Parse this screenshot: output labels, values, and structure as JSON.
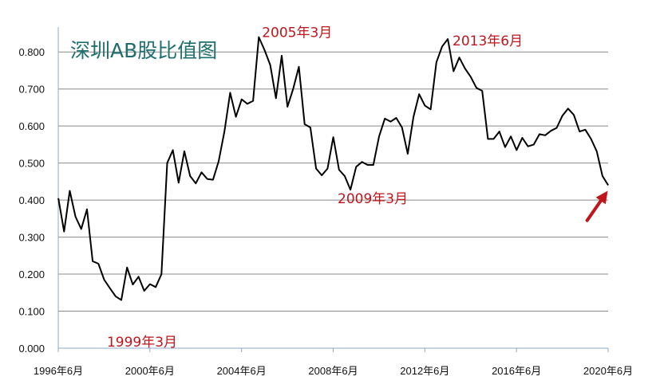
{
  "chart_data": {
    "type": "line",
    "title": "深圳AB股比值图",
    "xlabel": "",
    "ylabel": "",
    "ylim": [
      0,
      0.85
    ],
    "y_ticks": [
      "0.000",
      "0.100",
      "0.200",
      "0.300",
      "0.400",
      "0.500",
      "0.600",
      "0.700",
      "0.800"
    ],
    "x_tick_labels": [
      "1996年6月",
      "2000年6月",
      "2004年6月",
      "2008年6月",
      "2012年6月",
      "2016年6月",
      "2020年6月"
    ],
    "x_tick_years": [
      1996.417,
      2000.417,
      2004.417,
      2008.417,
      2012.417,
      2016.417,
      2020.417
    ],
    "xlim": [
      1996.417,
      2020.417
    ],
    "grid": "horizontal",
    "line_color": "#000000",
    "annotation_color": "#c0151b",
    "annotations": [
      {
        "text": "1999年3月",
        "x": 1999.167,
        "y": 0.03
      },
      {
        "text": "2005年3月",
        "x": 2005.167,
        "y": 0.84
      },
      {
        "text": "2009年3月",
        "x": 2009.167,
        "y": 0.43
      },
      {
        "text": "2013年6月",
        "x": 2013.417,
        "y": 0.835
      }
    ],
    "arrow": {
      "from": [
        2019.5,
        0.345
      ],
      "to": [
        2020.4,
        0.425
      ],
      "color": "#c0151b"
    },
    "series": [
      {
        "x": [
          1996.42,
          1996.67,
          1996.92,
          1997.17,
          1997.42,
          1997.67,
          1997.92,
          1998.17,
          1998.42,
          1998.67,
          1998.92,
          1999.17,
          1999.42,
          1999.67,
          1999.92,
          2000.17,
          2000.42,
          2000.67,
          2000.92,
          2001.17,
          2001.42,
          2001.67,
          2001.92,
          2002.17,
          2002.42,
          2002.67,
          2002.92,
          2003.17,
          2003.42,
          2003.67,
          2003.92,
          2004.17,
          2004.42,
          2004.67,
          2004.92,
          2005.17,
          2005.42,
          2005.67,
          2005.92,
          2006.17,
          2006.42,
          2006.67,
          2006.92,
          2007.17,
          2007.42,
          2007.67,
          2007.92,
          2008.17,
          2008.42,
          2008.67,
          2008.92,
          2009.17,
          2009.42,
          2009.67,
          2009.92,
          2010.17,
          2010.42,
          2010.67,
          2010.92,
          2011.17,
          2011.42,
          2011.67,
          2011.92,
          2012.17,
          2012.42,
          2012.67,
          2012.92,
          2013.17,
          2013.42,
          2013.67,
          2013.92,
          2014.17,
          2014.42,
          2014.67,
          2014.92,
          2015.17,
          2015.42,
          2015.67,
          2015.92,
          2016.17,
          2016.42,
          2016.67,
          2016.92,
          2017.17,
          2017.42,
          2017.67,
          2017.92,
          2018.17,
          2018.42,
          2018.67,
          2018.92,
          2019.17,
          2019.42,
          2019.67,
          2019.92,
          2020.17,
          2020.42
        ],
        "values": [
          0.405,
          0.315,
          0.425,
          0.355,
          0.322,
          0.375,
          0.235,
          0.228,
          0.185,
          0.162,
          0.14,
          0.13,
          0.218,
          0.172,
          0.193,
          0.155,
          0.173,
          0.165,
          0.2,
          0.5,
          0.535,
          0.447,
          0.532,
          0.465,
          0.445,
          0.475,
          0.457,
          0.455,
          0.505,
          0.585,
          0.69,
          0.625,
          0.672,
          0.66,
          0.668,
          0.84,
          0.805,
          0.765,
          0.675,
          0.79,
          0.652,
          0.7,
          0.76,
          0.605,
          0.596,
          0.485,
          0.467,
          0.485,
          0.57,
          0.482,
          0.465,
          0.428,
          0.49,
          0.503,
          0.495,
          0.495,
          0.572,
          0.62,
          0.612,
          0.622,
          0.596,
          0.525,
          0.625,
          0.686,
          0.655,
          0.645,
          0.772,
          0.815,
          0.835,
          0.748,
          0.785,
          0.755,
          0.733,
          0.703,
          0.695,
          0.565,
          0.565,
          0.585,
          0.543,
          0.572,
          0.535,
          0.568,
          0.545,
          0.55,
          0.578,
          0.575,
          0.587,
          0.595,
          0.628,
          0.647,
          0.63,
          0.585,
          0.59,
          0.565,
          0.532,
          0.465,
          0.44
        ]
      }
    ]
  }
}
